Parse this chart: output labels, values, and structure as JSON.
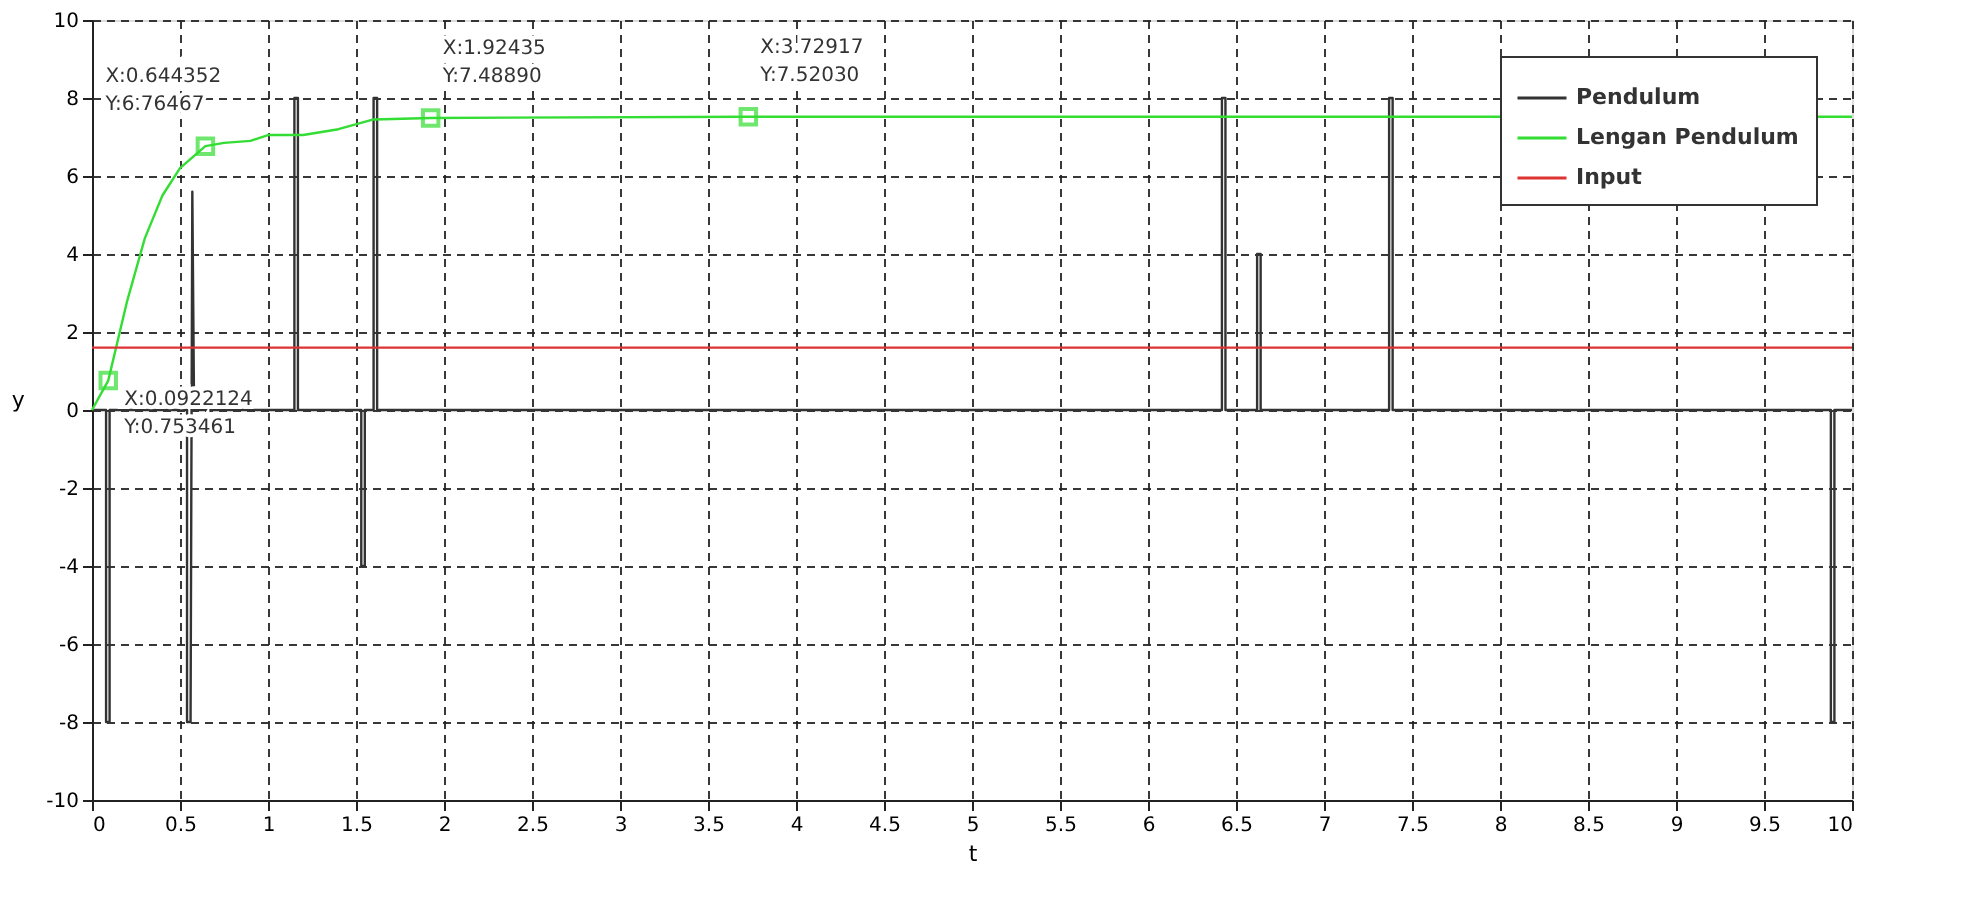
{
  "chart_data": {
    "type": "line",
    "xlabel": "t",
    "ylabel": "y",
    "xlim": [
      0,
      10
    ],
    "xticks": [
      0,
      0.5,
      1,
      1.5,
      2,
      2.5,
      3,
      3.5,
      4,
      4.5,
      5,
      5.5,
      6,
      6.5,
      7,
      7.5,
      8,
      8.5,
      9,
      9.5,
      10
    ],
    "ylim": [
      -10,
      10
    ],
    "yticks": [
      -10,
      -8,
      -6,
      -4,
      -2,
      0,
      2,
      4,
      6,
      8,
      10
    ],
    "grid": true,
    "legend": "top right",
    "line_style": "solid",
    "marker": "none",
    "series": [
      {
        "name": "Pendulum",
        "color": "#333333",
        "x": [
          0,
          0.08,
          0.08,
          0.1,
          0.1,
          0.54,
          0.54,
          0.56,
          0.57,
          0.58,
          1.15,
          1.15,
          1.17,
          1.17,
          1.53,
          1.53,
          1.55,
          1.55,
          1.6,
          1.6,
          1.62,
          1.62,
          6.42,
          6.42,
          6.44,
          6.44,
          6.62,
          6.62,
          6.64,
          6.64,
          7.37,
          7.37,
          7.39,
          7.39,
          9.88,
          9.88,
          9.9,
          9.9,
          10
        ],
        "values": [
          0,
          0,
          -8,
          -8,
          0,
          0,
          -8,
          -8,
          5.6,
          0,
          0,
          8,
          8,
          0,
          0,
          -4,
          -4,
          0,
          0,
          8,
          8,
          0,
          0,
          8,
          8,
          0,
          0,
          4,
          4,
          0,
          0,
          8,
          8,
          0,
          0,
          -8,
          -8,
          0,
          0
        ]
      },
      {
        "name": "Lengan Pendulum",
        "color": "#33dd33",
        "x": [
          0,
          0.0922124,
          0.2,
          0.3,
          0.4,
          0.5,
          0.644352,
          0.75,
          0.9,
          1.0,
          1.2,
          1.4,
          1.6,
          1.92435,
          3.72917,
          10
        ],
        "values": [
          0,
          0.753461,
          2.8,
          4.4,
          5.5,
          6.2,
          6.76467,
          6.85,
          6.9,
          7.05,
          7.05,
          7.2,
          7.45,
          7.4889,
          7.5203,
          7.52
        ]
      },
      {
        "name": "Input",
        "color": "#dd3333",
        "x": [
          0,
          10
        ],
        "values": [
          1.6,
          1.6
        ]
      }
    ],
    "annotations": [
      {
        "text": "X:0.644352\nY:6.76467",
        "x": 0.644352,
        "y": 6.76467
      },
      {
        "text": "X:0.0922124\nY:0.753461",
        "x": 0.0922124,
        "y": 0.753461
      },
      {
        "text": "X:1.92435\nY:7.48890",
        "x": 1.92435,
        "y": 7.4889
      },
      {
        "text": "X:3.72917\nY:7.52030",
        "x": 3.72917,
        "y": 7.5203
      }
    ]
  }
}
